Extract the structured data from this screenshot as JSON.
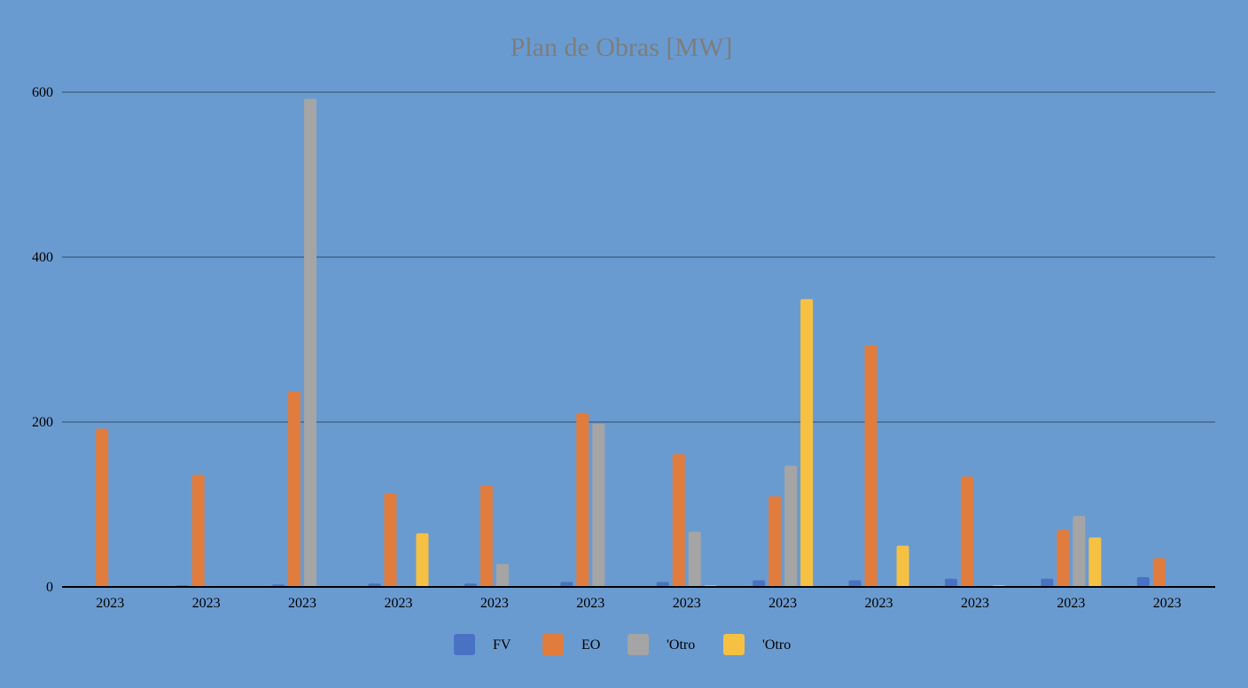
{
  "colors": {
    "background": "#6a9bd0",
    "gridline": "#3f5a78",
    "axis": "#000000",
    "title": "#7d7d7d",
    "text": "#000000"
  },
  "chart_data": {
    "type": "bar",
    "title": "Plan de Obras [MW]",
    "xlabel": "",
    "ylabel": "",
    "ylim": [
      0,
      600
    ],
    "yticks": [
      0,
      200,
      400,
      600
    ],
    "grid": true,
    "legend_position": "bottom",
    "categories": [
      "2023",
      "2023",
      "2023",
      "2023",
      "2023",
      "2023",
      "2023",
      "2023",
      "2023",
      "2023",
      "2023",
      "2023"
    ],
    "series": [
      {
        "name": "FV",
        "color": "#4a72c4",
        "values": [
          0,
          2,
          3,
          4,
          4,
          6,
          6,
          8,
          8,
          10,
          10,
          12
        ]
      },
      {
        "name": "EO",
        "color": "#e07c3e",
        "values": [
          192,
          136,
          237,
          114,
          123,
          211,
          161,
          110,
          293,
          134,
          69,
          35
        ]
      },
      {
        "name": "'Otro",
        "color": "#a5a5a5",
        "values": [
          0,
          0,
          592,
          0,
          28,
          198,
          67,
          147,
          0,
          0,
          86,
          0
        ]
      },
      {
        "name": "'Otro",
        "color": "#f6c142",
        "values": [
          0,
          0,
          0,
          65,
          0,
          0,
          2,
          349,
          50,
          2,
          60,
          0
        ]
      }
    ]
  }
}
